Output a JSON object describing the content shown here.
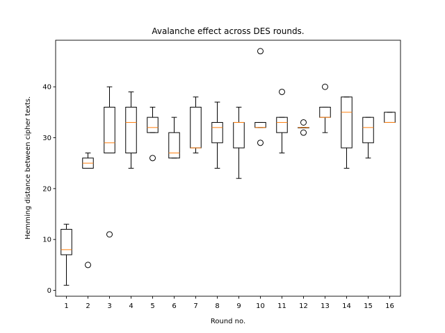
{
  "chart_data": {
    "type": "box",
    "title": "Avalanche effect across DES rounds.",
    "xlabel": "Round no.",
    "ylabel": "Hemming distance between cipher texts.",
    "xlim": [
      0.5,
      16.5
    ],
    "ylim": [
      -1.15,
      49.15
    ],
    "yticks": [
      0,
      10,
      20,
      30,
      40
    ],
    "grid": false,
    "colors": {
      "box": "#000000",
      "median": "#ff7f0e",
      "flier": "#000000"
    },
    "categories": [
      "1",
      "2",
      "3",
      "4",
      "5",
      "6",
      "7",
      "8",
      "9",
      "10",
      "11",
      "12",
      "13",
      "14",
      "15",
      "16"
    ],
    "boxes": [
      {
        "round": "1",
        "whislo": 1,
        "q1": 7,
        "med": 8,
        "q3": 12,
        "whishi": 13,
        "fliers": []
      },
      {
        "round": "2",
        "whislo": 24,
        "q1": 24,
        "med": 25,
        "q3": 26,
        "whishi": 27,
        "fliers": [
          5
        ]
      },
      {
        "round": "3",
        "whislo": 27,
        "q1": 27,
        "med": 29,
        "q3": 36,
        "whishi": 40,
        "fliers": [
          11
        ]
      },
      {
        "round": "4",
        "whislo": 24,
        "q1": 27,
        "med": 33,
        "q3": 36,
        "whishi": 39,
        "fliers": []
      },
      {
        "round": "5",
        "whislo": 31,
        "q1": 31,
        "med": 32,
        "q3": 34,
        "whishi": 36,
        "fliers": [
          26
        ]
      },
      {
        "round": "6",
        "whislo": 26,
        "q1": 26,
        "med": 27,
        "q3": 31,
        "whishi": 34,
        "fliers": []
      },
      {
        "round": "7",
        "whislo": 27,
        "q1": 28,
        "med": 28,
        "q3": 36,
        "whishi": 38,
        "fliers": []
      },
      {
        "round": "8",
        "whislo": 24,
        "q1": 29,
        "med": 32,
        "q3": 33,
        "whishi": 37,
        "fliers": []
      },
      {
        "round": "9",
        "whislo": 22,
        "q1": 28,
        "med": 33,
        "q3": 33,
        "whishi": 36,
        "fliers": []
      },
      {
        "round": "10",
        "whislo": 32,
        "q1": 32,
        "med": 32,
        "q3": 33,
        "whishi": 33,
        "fliers": [
          47,
          29
        ]
      },
      {
        "round": "11",
        "whislo": 27,
        "q1": 31,
        "med": 33,
        "q3": 34,
        "whishi": 34,
        "fliers": [
          39
        ]
      },
      {
        "round": "12",
        "whislo": 32,
        "q1": 32,
        "med": 32,
        "q3": 32,
        "whishi": 32,
        "fliers": [
          33,
          31
        ]
      },
      {
        "round": "13",
        "whislo": 31,
        "q1": 34,
        "med": 34,
        "q3": 36,
        "whishi": 36,
        "fliers": [
          40
        ]
      },
      {
        "round": "14",
        "whislo": 24,
        "q1": 28,
        "med": 35,
        "q3": 38,
        "whishi": 38,
        "fliers": []
      },
      {
        "round": "15",
        "whislo": 26,
        "q1": 29,
        "med": 32,
        "q3": 34,
        "whishi": 34,
        "fliers": []
      },
      {
        "round": "16",
        "whislo": 33,
        "q1": 33,
        "med": 33,
        "q3": 35,
        "whishi": 35,
        "fliers": []
      }
    ]
  }
}
